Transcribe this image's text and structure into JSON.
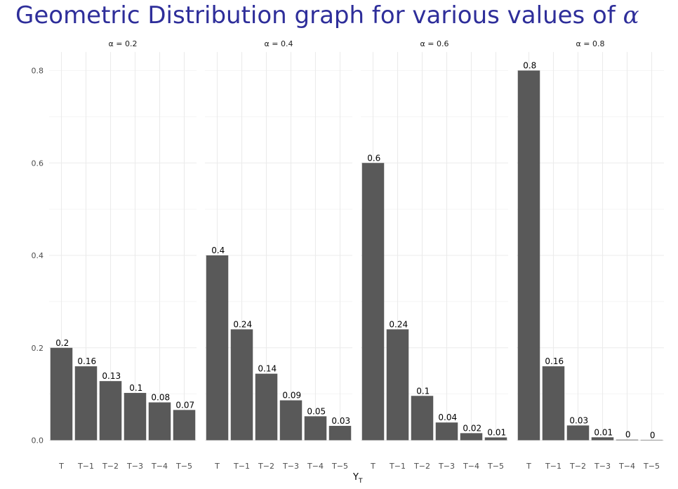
{
  "title": "Geometric Distribution graph for various values of ",
  "title_symbol": "α",
  "chart_data": {
    "type": "bar",
    "title": "Geometric Distribution graph for various values of α",
    "xlabel": "Y",
    "xlabel_subscript": "T",
    "ylabel": "",
    "ylim": [
      0,
      0.84
    ],
    "yticks": [
      "0.0",
      "0.2",
      "0.4",
      "0.6",
      "0.8"
    ],
    "ytick_values": [
      0,
      0.2,
      0.4,
      0.6,
      0.8
    ],
    "categories": [
      "T",
      "T−1",
      "T−2",
      "T−3",
      "T−4",
      "T−5"
    ],
    "grid": true,
    "bar_color": "#595959",
    "facets": [
      {
        "name": "α = 0.2",
        "values": [
          0.2,
          0.16,
          0.128,
          0.1024,
          0.08192,
          0.065536
        ],
        "labels": [
          "0.2",
          "0.16",
          "0.13",
          "0.1",
          "0.08",
          "0.07"
        ]
      },
      {
        "name": "α = 0.4",
        "values": [
          0.4,
          0.24,
          0.144,
          0.0864,
          0.05184,
          0.031104
        ],
        "labels": [
          "0.4",
          "0.24",
          "0.14",
          "0.09",
          "0.05",
          "0.03"
        ]
      },
      {
        "name": "α = 0.6",
        "values": [
          0.6,
          0.24,
          0.096,
          0.0384,
          0.01536,
          0.006144
        ],
        "labels": [
          "0.6",
          "0.24",
          "0.1",
          "0.04",
          "0.02",
          "0.01"
        ]
      },
      {
        "name": "α = 0.8",
        "values": [
          0.8,
          0.16,
          0.032,
          0.0064,
          0.00128,
          0.000256
        ],
        "labels": [
          "0.8",
          "0.16",
          "0.03",
          "0.01",
          "0",
          "0"
        ]
      }
    ]
  }
}
